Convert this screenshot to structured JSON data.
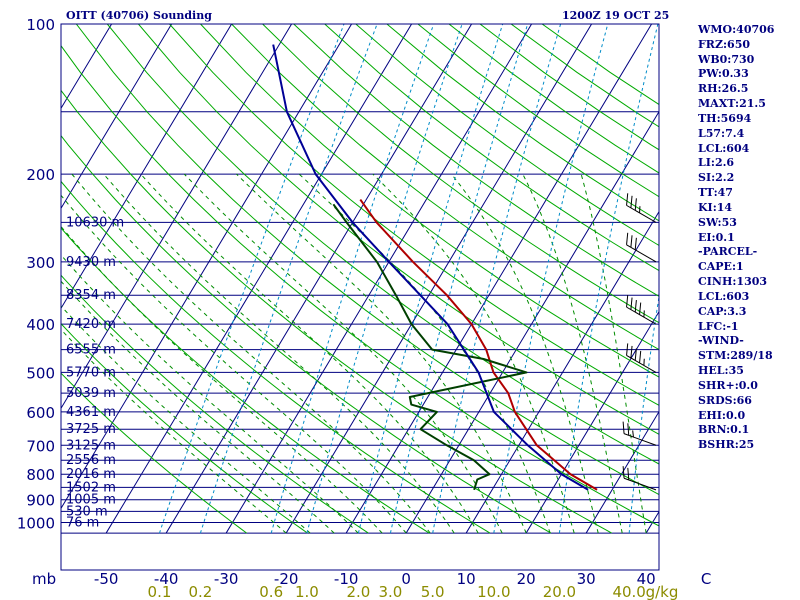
{
  "header": {
    "station_title": "OITT (40706) Sounding",
    "time_title": "1200Z 19 OCT 25"
  },
  "indices": [
    "WMO:40706",
    "FRZ:650",
    "WB0:730",
    "PW:0.33",
    "RH:26.5",
    "MAXT:21.5",
    "TH:5694",
    "L57:7.4",
    "LCL:604",
    "LI:2.6",
    "SI:2.2",
    "TT:47",
    "KI:14",
    "SW:53",
    "EI:0.1",
    "-PARCEL-",
    "CAPE:1",
    "CINH:1303",
    "LCL:603",
    "CAP:3.3",
    "LFC:-1",
    "-WIND-",
    "STM:289/18",
    "HEL:35",
    "SHR+:0.0",
    "SRDS:66",
    "EHI:0.0",
    "BRN:0.1",
    "BSHR:25"
  ],
  "colors": {
    "frame": "#000080",
    "isobar": "#000080",
    "isotherm": "#000080",
    "dry_adiabat": "#00aa00",
    "moist_adiabat": "#008c00",
    "mixing_ratio": "#008cc8",
    "temperature": "#b00000",
    "dewpoint": "#004000",
    "parcel": "#000096",
    "axis_label": "#000080",
    "mixing_label": "#8c8c00",
    "wind": "#000000"
  },
  "chart_data": {
    "type": "skew-t",
    "title": "OITT (40706) Sounding",
    "subtitle": "1200Z 19 OCT 25",
    "pressure_axis_label": "mb",
    "pressure_range_hpa": [
      1050,
      100
    ],
    "temperature_range_c": [
      -50,
      50
    ],
    "pressure_ticks": [
      1000,
      900,
      800,
      700,
      600,
      500,
      400,
      300,
      200,
      100
    ],
    "temperature_ticks": [
      -50,
      -40,
      -30,
      -20,
      -10,
      0,
      10,
      20,
      30,
      40,
      50
    ],
    "temperature_tick_labels": [
      "-50",
      "-40",
      "-30",
      "-20",
      "-10",
      "0",
      "10",
      "20",
      "30",
      "40",
      "C"
    ],
    "mixing_ratio_lines": [
      0.1,
      0.2,
      0.6,
      1.0,
      2.0,
      3.0,
      5.0,
      10.0,
      20.0,
      40.0
    ],
    "mixing_ratio_labels": [
      "0.1",
      "0.2",
      "0.6",
      "1.0",
      "2.0",
      "3.0",
      "5.0",
      "10.0",
      "20.0",
      "40.0",
      "g/kg"
    ],
    "height_labels": [
      {
        "p": 1000,
        "text": "76 m"
      },
      {
        "p": 950,
        "text": "530 m"
      },
      {
        "p": 900,
        "text": "1005 m"
      },
      {
        "p": 850,
        "text": "1502 m"
      },
      {
        "p": 800,
        "text": "2016 m"
      },
      {
        "p": 750,
        "text": "2556 m"
      },
      {
        "p": 700,
        "text": "3125 m"
      },
      {
        "p": 650,
        "text": "3725 m"
      },
      {
        "p": 600,
        "text": "4361 m"
      },
      {
        "p": 550,
        "text": "5039 m"
      },
      {
        "p": 500,
        "text": "5770 m"
      },
      {
        "p": 450,
        "text": "6555 m"
      },
      {
        "p": 400,
        "text": "7420 m"
      },
      {
        "p": 350,
        "text": "8354 m"
      },
      {
        "p": 300,
        "text": "9430 m"
      },
      {
        "p": 250,
        "text": "10630 m"
      }
    ],
    "series": [
      {
        "name": "Temperature",
        "points": [
          [
            860,
            27.5
          ],
          [
            800,
            21.5
          ],
          [
            700,
            13.0
          ],
          [
            600,
            6.0
          ],
          [
            550,
            3.0
          ],
          [
            500,
            -1.5
          ],
          [
            450,
            -5.0
          ],
          [
            400,
            -10.0
          ],
          [
            350,
            -17.0
          ],
          [
            300,
            -26.0
          ],
          [
            250,
            -36.0
          ],
          [
            225,
            -41.0
          ]
        ]
      },
      {
        "name": "Dewpoint",
        "points": [
          [
            860,
            7.0
          ],
          [
            820,
            6.5
          ],
          [
            800,
            8.0
          ],
          [
            750,
            4.0
          ],
          [
            700,
            -2.0
          ],
          [
            650,
            -8.0
          ],
          [
            600,
            -7.0
          ],
          [
            580,
            -12.0
          ],
          [
            560,
            -13.0
          ],
          [
            500,
            4.0
          ],
          [
            470,
            -4.5
          ],
          [
            450,
            -14.0
          ],
          [
            400,
            -20.0
          ],
          [
            350,
            -25.5
          ],
          [
            300,
            -32.0
          ],
          [
            250,
            -41.0
          ],
          [
            230,
            -45.0
          ]
        ]
      },
      {
        "name": "Parcel",
        "points": [
          [
            860,
            26.0
          ],
          [
            800,
            20.0
          ],
          [
            700,
            11.5
          ],
          [
            600,
            2.5
          ],
          [
            500,
            -4.0
          ],
          [
            400,
            -14.0
          ],
          [
            300,
            -30.0
          ],
          [
            250,
            -40.0
          ],
          [
            200,
            -51.0
          ],
          [
            150,
            -62.0
          ],
          [
            110,
            -71.0
          ]
        ]
      }
    ],
    "wind_barbs": [
      {
        "p": 860,
        "direction": 290,
        "speed_kt": 20
      },
      {
        "p": 700,
        "direction": 290,
        "speed_kt": 25
      },
      {
        "p": 500,
        "direction": 300,
        "speed_kt": 45
      },
      {
        "p": 400,
        "direction": 300,
        "speed_kt": 45
      },
      {
        "p": 300,
        "direction": 300,
        "speed_kt": 30
      },
      {
        "p": 250,
        "direction": 300,
        "speed_kt": 35
      }
    ]
  }
}
